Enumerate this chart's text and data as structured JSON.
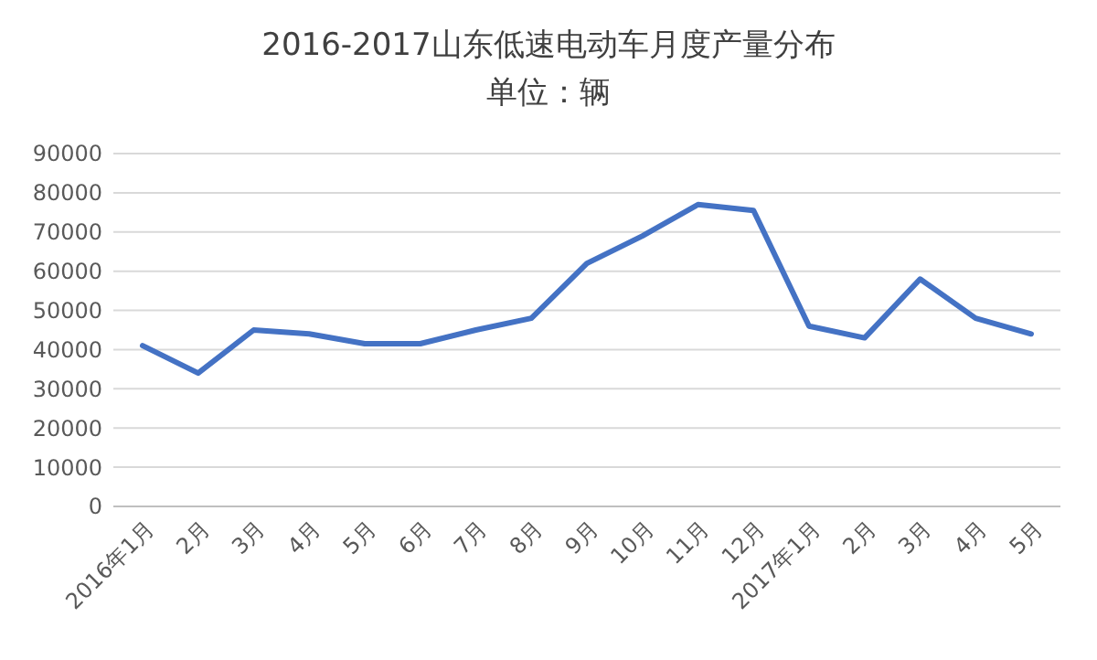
{
  "chart_data": {
    "type": "line",
    "title": "2016-2017山东低速电动车月度产量分布",
    "subtitle": "单位：辆",
    "categories": [
      "2016年1月",
      "2月",
      "3月",
      "4月",
      "5月",
      "6月",
      "7月",
      "8月",
      "9月",
      "10月",
      "11月",
      "12月",
      "2017年1月",
      "2月",
      "3月",
      "4月",
      "5月"
    ],
    "series": [
      {
        "color": "#4472c4",
        "values": [
          41000,
          34000,
          45000,
          44000,
          41500,
          41500,
          45000,
          48000,
          62000,
          69000,
          77000,
          75500,
          46000,
          43000,
          58000,
          48000,
          44000
        ]
      }
    ],
    "ylim": [
      0,
      90000
    ],
    "yticks": [
      0,
      10000,
      20000,
      30000,
      40000,
      50000,
      60000,
      70000,
      80000,
      90000
    ],
    "grid": "y",
    "marker": "none",
    "line_style": "solid"
  }
}
